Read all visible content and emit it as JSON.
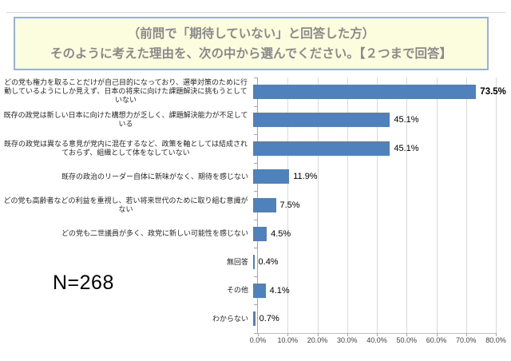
{
  "title_box": {
    "line1": "（前問で「期待していない」と回答した方）",
    "line2": "そのように考えた理由を、次の中から選んでください。【２つまで回答】",
    "background": "#FCFCDF",
    "border_color": "#95B3D7",
    "text_color": "#8A8A8A"
  },
  "sample_size_label": "N=268",
  "chart_data": {
    "type": "bar",
    "orientation": "horizontal",
    "title": "",
    "xlabel": "",
    "ylabel": "",
    "categories": [
      "どの党も権力を取ることだけが自己目的になっており、選挙対策のために行動しているようにしか見えず、日本の将来に向けた課題解決に挑もうとしていない",
      "既存の政党は新しい日本に向けた構想力が乏しく、課題解決能力が不足している",
      "既存の政党は異なる意見が党内に混在するなど、政策を軸としては結成されておらず、組織として体をなしていない",
      "既存の政治のリーダー自体に新味がなく、期待を感じない",
      "どの党も高齢者などの利益を重視し、若い将来世代のために取り組む意識がない",
      "どの党も二世議員が多く、政党に新しい可能性を感じない",
      "無回答",
      "その他",
      "わからない"
    ],
    "values": [
      73.5,
      45.1,
      45.1,
      11.9,
      7.5,
      4.5,
      0.4,
      4.1,
      0.7
    ],
    "value_labels": [
      "73.5%",
      "45.1%",
      "45.1%",
      "11.9%",
      "7.5%",
      "4.5%",
      "0.4%",
      "4.1%",
      "0.7%"
    ],
    "bold_value_indices": [
      0
    ],
    "xlim": [
      0,
      80
    ],
    "x_ticks": [
      "0.0%",
      "10.0%",
      "20.0%",
      "30.0%",
      "40.0%",
      "50.0%",
      "60.0%",
      "70.0%",
      "80.0%"
    ],
    "grid": true,
    "legend": "none",
    "bar_color": "#4F81BD",
    "gridline_color": "#D9D9D9",
    "axis_color": "#A6A6A6"
  }
}
